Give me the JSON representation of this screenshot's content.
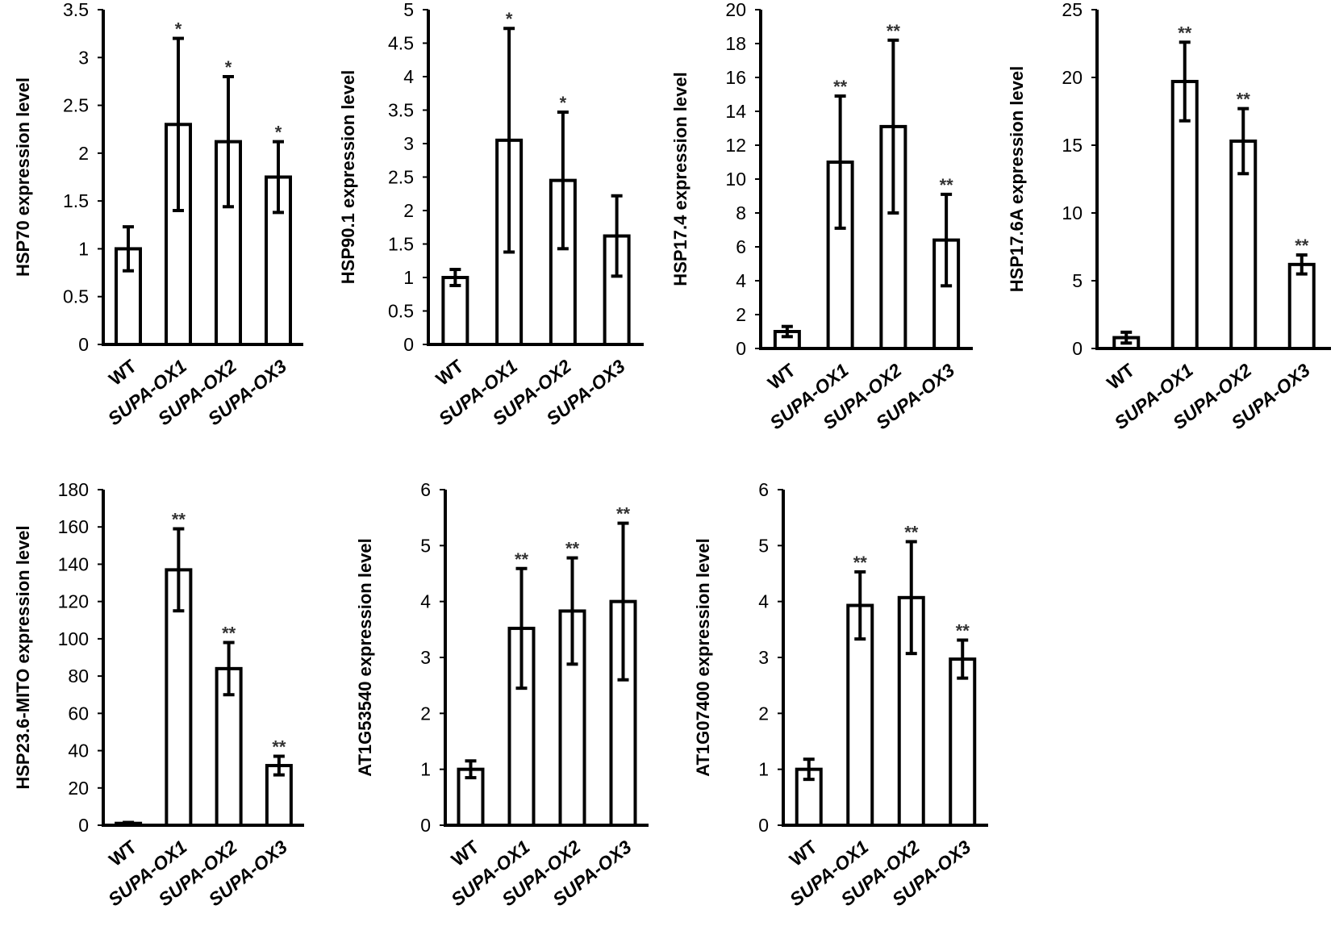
{
  "figure": {
    "categories": [
      "WT",
      "SUPA-OX1",
      "SUPA-OX2",
      "SUPA-OX3"
    ],
    "italic_categories": [
      false,
      true,
      true,
      true
    ]
  },
  "chart_data": [
    {
      "type": "bar",
      "ylabel": "HSP70 expression level",
      "categories": [
        "WT",
        "SUPA-OX1",
        "SUPA-OX2",
        "SUPA-OX3"
      ],
      "values": [
        1.0,
        2.3,
        2.12,
        1.75
      ],
      "errors": [
        0.23,
        0.9,
        0.68,
        0.37
      ],
      "significance": [
        "",
        "*",
        "*",
        "*"
      ],
      "ylim": [
        0,
        3.5
      ],
      "ticks": [
        "0",
        "0.5",
        "1",
        "1.5",
        "2",
        "2.5",
        "3",
        "3.5"
      ]
    },
    {
      "type": "bar",
      "ylabel": "HSP90.1 expression level",
      "categories": [
        "WT",
        "SUPA-OX1",
        "SUPA-OX2",
        "SUPA-OX3"
      ],
      "values": [
        1.0,
        3.05,
        2.45,
        1.62
      ],
      "errors": [
        0.12,
        1.67,
        1.02,
        0.6
      ],
      "significance": [
        "",
        "*",
        "*",
        ""
      ],
      "ylim": [
        0,
        5
      ],
      "ticks": [
        "0",
        "0.5",
        "1",
        "1.5",
        "2",
        "2.5",
        "3",
        "3.5",
        "4",
        "4.5",
        "5"
      ]
    },
    {
      "type": "bar",
      "ylabel": "HSP17.4 expression level",
      "categories": [
        "WT",
        "SUPA-OX1",
        "SUPA-OX2",
        "SUPA-OX3"
      ],
      "values": [
        1.0,
        11.0,
        13.1,
        6.4
      ],
      "errors": [
        0.3,
        3.9,
        5.1,
        2.7
      ],
      "significance": [
        "",
        "**",
        "**",
        "**"
      ],
      "ylim": [
        0,
        20
      ],
      "ticks": [
        "0",
        "2",
        "4",
        "6",
        "8",
        "10",
        "12",
        "14",
        "16",
        "18",
        "20"
      ]
    },
    {
      "type": "bar",
      "ylabel": "HSP17.6A expression level",
      "categories": [
        "WT",
        "SUPA-OX1",
        "SUPA-OX2",
        "SUPA-OX3"
      ],
      "values": [
        0.8,
        19.7,
        15.3,
        6.2
      ],
      "errors": [
        0.4,
        2.9,
        2.4,
        0.7
      ],
      "significance": [
        "",
        "**",
        "**",
        "**"
      ],
      "ylim": [
        0,
        25
      ],
      "ticks": [
        "0",
        "5",
        "10",
        "15",
        "20",
        "25"
      ]
    },
    {
      "type": "bar",
      "ylabel": "HSP23.6-MITO expression level",
      "categories": [
        "WT",
        "SUPA-OX1",
        "SUPA-OX2",
        "SUPA-OX3"
      ],
      "values": [
        1.0,
        137,
        84,
        32
      ],
      "errors": [
        0.5,
        22,
        14,
        5
      ],
      "significance": [
        "",
        "**",
        "**",
        "**"
      ],
      "ylim": [
        0,
        180
      ],
      "ticks": [
        "0",
        "20",
        "40",
        "60",
        "80",
        "100",
        "120",
        "140",
        "160",
        "180"
      ]
    },
    {
      "type": "bar",
      "ylabel": "AT1G53540 expression level",
      "categories": [
        "WT",
        "SUPA-OX1",
        "SUPA-OX2",
        "SUPA-OX3"
      ],
      "values": [
        1.0,
        3.52,
        3.83,
        4.0
      ],
      "errors": [
        0.15,
        1.07,
        0.95,
        1.4
      ],
      "significance": [
        "",
        "**",
        "**",
        "**"
      ],
      "ylim": [
        0,
        6
      ],
      "ticks": [
        "0",
        "1",
        "2",
        "3",
        "4",
        "5",
        "6"
      ]
    },
    {
      "type": "bar",
      "ylabel": "AT1G07400 expression level",
      "categories": [
        "WT",
        "SUPA-OX1",
        "SUPA-OX2",
        "SUPA-OX3"
      ],
      "values": [
        1.0,
        3.93,
        4.07,
        2.97
      ],
      "errors": [
        0.18,
        0.6,
        1.0,
        0.34
      ],
      "significance": [
        "",
        "**",
        "**",
        "**"
      ],
      "ylim": [
        0,
        6
      ],
      "ticks": [
        "0",
        "1",
        "2",
        "3",
        "4",
        "5",
        "6"
      ]
    }
  ]
}
